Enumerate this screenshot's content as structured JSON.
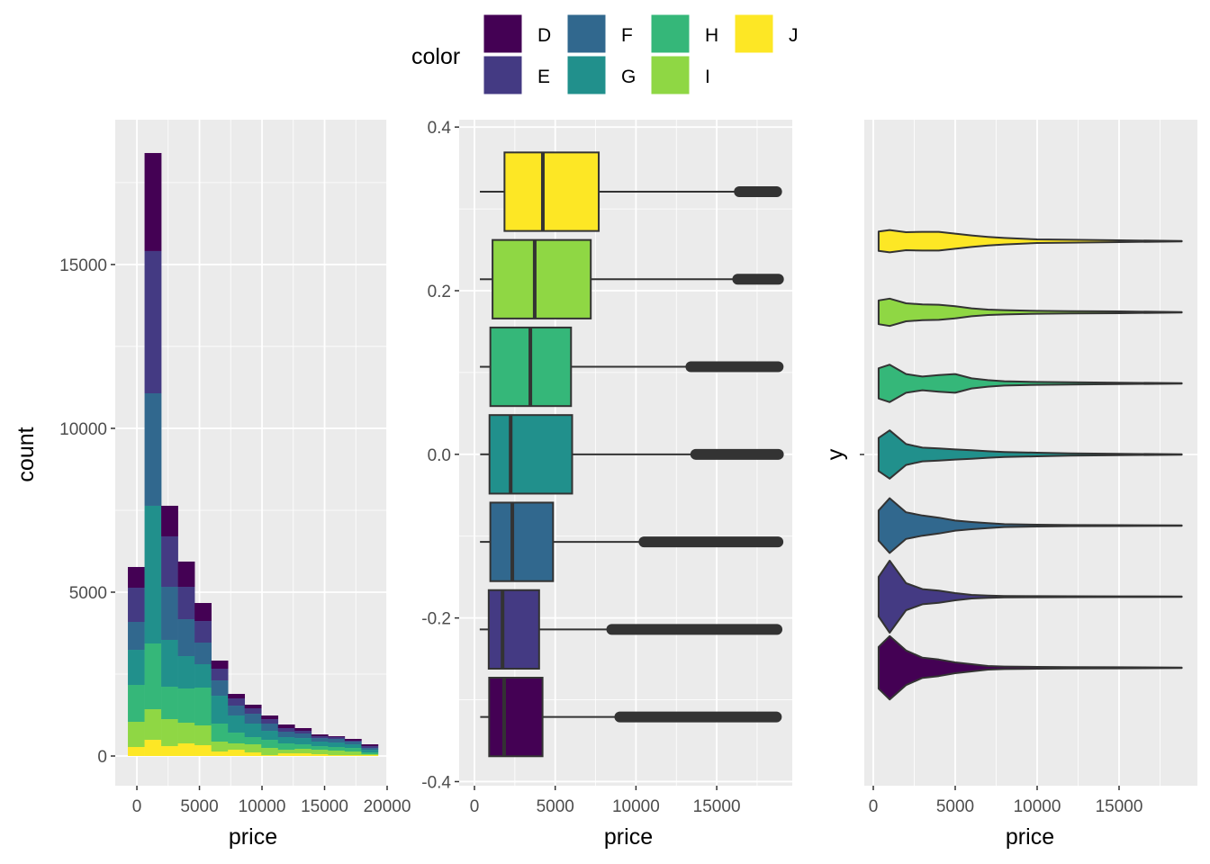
{
  "legend": {
    "title": "color",
    "position": "top",
    "items": [
      {
        "label": "D",
        "color": "#440154"
      },
      {
        "label": "E",
        "color": "#443A83"
      },
      {
        "label": "F",
        "color": "#31688E"
      },
      {
        "label": "G",
        "color": "#21908C"
      },
      {
        "label": "H",
        "color": "#35B779"
      },
      {
        "label": "I",
        "color": "#8FD744"
      },
      {
        "label": "J",
        "color": "#FDE725"
      }
    ]
  },
  "chart_data": [
    {
      "type": "bar",
      "subtype": "stacked-histogram",
      "xlabel": "price",
      "ylabel": "count",
      "xlim": [
        -1730,
        20000
      ],
      "ylim": [
        -906,
        19420
      ],
      "xticks": [
        0,
        5000,
        10000,
        15000,
        20000
      ],
      "xtick_labels": [
        "0",
        "5000",
        "10000",
        "15000",
        "20000"
      ],
      "yticks": [
        0,
        5000,
        10000,
        15000
      ],
      "ytick_labels": [
        "0",
        "5000",
        "10000",
        "15000"
      ],
      "grid": true,
      "bin_start": -720,
      "bin_width": 1333,
      "stack_order_bottom_to_top": [
        "J",
        "I",
        "H",
        "G",
        "F",
        "E",
        "D"
      ],
      "series": [
        {
          "name": "D",
          "values": [
            632,
            2992,
            934,
            770,
            550,
            247,
            137,
            110,
            110,
            109,
            83,
            55,
            27,
            55,
            55
          ]
        },
        {
          "name": "E",
          "values": [
            1044,
            4341,
            1539,
            989,
            659,
            358,
            220,
            165,
            137,
            110,
            82,
            55,
            55,
            27,
            55
          ]
        },
        {
          "name": "F",
          "values": [
            852,
            3433,
            1620,
            1126,
            659,
            467,
            302,
            302,
            220,
            165,
            138,
            109,
            110,
            83,
            55
          ]
        },
        {
          "name": "G",
          "values": [
            1071,
            4203,
            1429,
            989,
            714,
            851,
            522,
            412,
            275,
            192,
            192,
            138,
            137,
            110,
            82
          ]
        },
        {
          "name": "H",
          "values": [
            1126,
            2006,
            989,
            1044,
            1154,
            549,
            329,
            220,
            247,
            193,
            137,
            110,
            110,
            110,
            55
          ]
        },
        {
          "name": "I",
          "values": [
            769,
            934,
            824,
            631,
            604,
            303,
            193,
            247,
            220,
            110,
            138,
            137,
            138,
            110,
            28
          ]
        },
        {
          "name": "J",
          "values": [
            275,
            494,
            302,
            385,
            330,
            137,
            192,
            110,
            27,
            82,
            82,
            55,
            27,
            27,
            27
          ]
        }
      ]
    },
    {
      "type": "boxplot",
      "xlabel": "price",
      "ylabel": "",
      "xlim": [
        -948,
        19677
      ],
      "ylim": [
        -0.405,
        0.409
      ],
      "xticks": [
        0,
        5000,
        10000,
        15000
      ],
      "xtick_labels": [
        "0",
        "5000",
        "10000",
        "15000"
      ],
      "yticks": [
        -0.4,
        -0.2,
        0.0,
        0.2,
        0.4
      ],
      "ytick_labels": [
        "-0.4",
        "-0.2",
        "0.0",
        "0.2",
        "0.4"
      ],
      "grid": true,
      "series": [
        {
          "name": "D",
          "y": -0.321,
          "min": 357,
          "q1": 911,
          "median": 1838,
          "q3": 4214,
          "whisker_high": 8860,
          "outliers_from": 9000,
          "max": 18693
        },
        {
          "name": "E",
          "y": -0.214,
          "min": 326,
          "q1": 882,
          "median": 1739,
          "q3": 4003,
          "whisker_high": 8420,
          "outliers_from": 8500,
          "max": 18731
        },
        {
          "name": "F",
          "y": -0.107,
          "min": 342,
          "q1": 982,
          "median": 2344,
          "q3": 4868,
          "whisker_high": 10370,
          "outliers_from": 10500,
          "max": 18791
        },
        {
          "name": "G",
          "y": 0.0,
          "min": 354,
          "q1": 931,
          "median": 2242,
          "q3": 6048,
          "whisker_high": 13430,
          "outliers_from": 13700,
          "max": 18818
        },
        {
          "name": "H",
          "y": 0.107,
          "min": 337,
          "q1": 984,
          "median": 3460,
          "q3": 5980,
          "whisker_high": 13150,
          "outliers_from": 13400,
          "max": 18803
        },
        {
          "name": "I",
          "y": 0.214,
          "min": 334,
          "q1": 1120,
          "median": 3730,
          "q3": 7202,
          "whisker_high": 16000,
          "outliers_from": 16300,
          "max": 18823
        },
        {
          "name": "J",
          "y": 0.321,
          "min": 335,
          "q1": 1860,
          "median": 4234,
          "q3": 7695,
          "whisker_high": 16160,
          "outliers_from": 16400,
          "max": 18710
        }
      ]
    },
    {
      "type": "violin",
      "xlabel": "price",
      "ylabel": "y",
      "xlim": [
        -549,
        19780
      ],
      "xticks": [
        0,
        5000,
        10000,
        15000
      ],
      "xtick_labels": [
        "0",
        "5000",
        "10000",
        "15000"
      ],
      "grid": true,
      "density_x": [
        326,
        1000,
        2000,
        3000,
        4000,
        5000,
        6000,
        7000,
        8000,
        10000,
        12000,
        15000,
        18823
      ],
      "series": [
        {
          "name": "D",
          "density": [
            0.58,
            0.88,
            0.48,
            0.28,
            0.23,
            0.15,
            0.1,
            0.05,
            0.035,
            0.025,
            0.02,
            0.015,
            0.005
          ]
        },
        {
          "name": "E",
          "density": [
            0.55,
            1.0,
            0.375,
            0.21,
            0.17,
            0.1,
            0.05,
            0.03,
            0.02,
            0.015,
            0.012,
            0.01,
            0.005
          ]
        },
        {
          "name": "F",
          "density": [
            0.42,
            0.76,
            0.37,
            0.28,
            0.22,
            0.14,
            0.1,
            0.07,
            0.04,
            0.025,
            0.015,
            0.012,
            0.005
          ]
        },
        {
          "name": "G",
          "density": [
            0.46,
            0.67,
            0.29,
            0.19,
            0.17,
            0.14,
            0.12,
            0.09,
            0.07,
            0.05,
            0.03,
            0.02,
            0.005
          ]
        },
        {
          "name": "H",
          "density": [
            0.42,
            0.52,
            0.26,
            0.19,
            0.23,
            0.26,
            0.14,
            0.09,
            0.06,
            0.04,
            0.03,
            0.02,
            0.005
          ]
        },
        {
          "name": "I",
          "density": [
            0.33,
            0.38,
            0.25,
            0.22,
            0.21,
            0.17,
            0.11,
            0.075,
            0.06,
            0.04,
            0.03,
            0.025,
            0.005
          ]
        },
        {
          "name": "J",
          "density": [
            0.27,
            0.31,
            0.25,
            0.26,
            0.26,
            0.21,
            0.16,
            0.12,
            0.09,
            0.05,
            0.04,
            0.025,
            0.005
          ]
        }
      ]
    }
  ]
}
